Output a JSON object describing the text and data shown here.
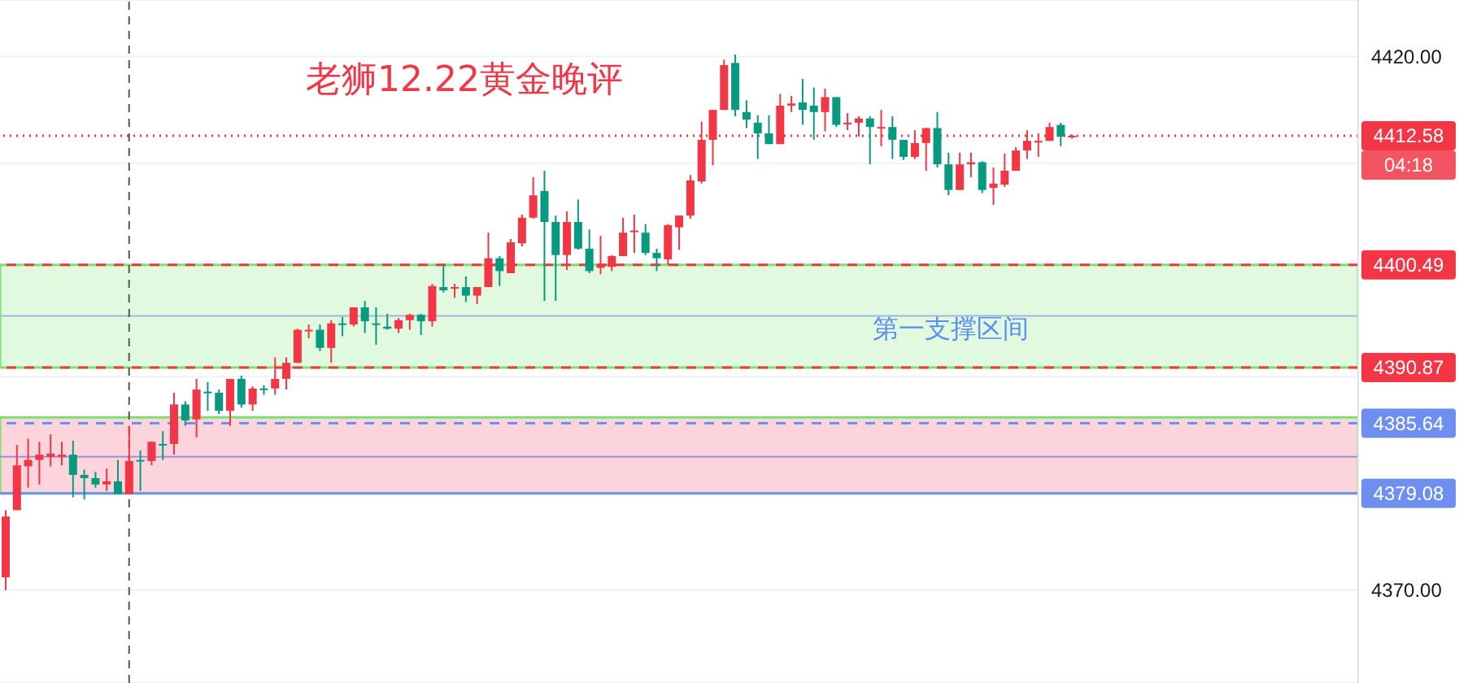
{
  "chart_data": {
    "type": "candlestick",
    "title": "老狮12.22黄金晚评",
    "categories": [
      null,
      null,
      null,
      null,
      null,
      null,
      null,
      null,
      null,
      null,
      null,
      null,
      null,
      null,
      null,
      null,
      null,
      null,
      null,
      null,
      null,
      null,
      null,
      null,
      null,
      null,
      null,
      null,
      null,
      null,
      null,
      null,
      null,
      null,
      null,
      null,
      null,
      null,
      null,
      null,
      null,
      null,
      null,
      null,
      null,
      null,
      null,
      null,
      null,
      null,
      null,
      null,
      null,
      null,
      null,
      null,
      null,
      null,
      null,
      null,
      null,
      null,
      null,
      null,
      null,
      null,
      null,
      null,
      null,
      null,
      null,
      null,
      null,
      null,
      null,
      null,
      null,
      null,
      null,
      null,
      null,
      null,
      null,
      null,
      null,
      null,
      null,
      null,
      null,
      null,
      null,
      null,
      null,
      null,
      null,
      null,
      null,
      null,
      null,
      null,
      null,
      null,
      null,
      null,
      null,
      null,
      null,
      null,
      null,
      null,
      null,
      null,
      null,
      null,
      null,
      null,
      null,
      null,
      null,
      null,
      null
    ],
    "ohlc": [
      [
        4371.2,
        4377.5,
        4370.0,
        4376.9
      ],
      [
        4377.5,
        4383.6,
        4377.5,
        4381.7
      ],
      [
        4381.6,
        4384.2,
        4379.6,
        4382.2
      ],
      [
        4382.2,
        4383.9,
        4379.9,
        4382.7
      ],
      [
        4382.5,
        4384.6,
        4381.6,
        4382.8
      ],
      [
        4382.5,
        4383.9,
        4381.7,
        4382.7
      ],
      [
        4382.7,
        4384.0,
        4378.7,
        4380.8
      ],
      [
        4380.8,
        4381.3,
        4378.5,
        4380.5
      ],
      [
        4380.5,
        4381.1,
        4379.6,
        4379.9
      ],
      [
        4379.9,
        4381.4,
        4379.3,
        4380.2
      ],
      [
        4380.2,
        4382.2,
        4379.0,
        4379.0
      ],
      [
        4379.0,
        4385.4,
        4379.0,
        4382.1
      ],
      [
        4382.2,
        4383.1,
        4379.3,
        4382.1
      ],
      [
        4382.1,
        4383.9,
        4381.7,
        4383.9
      ],
      [
        4383.7,
        4384.9,
        4382.2,
        4383.6
      ],
      [
        4383.7,
        4388.5,
        4382.7,
        4387.4
      ],
      [
        4387.4,
        4387.7,
        4385.4,
        4385.9
      ],
      [
        4386.0,
        4389.8,
        4384.3,
        4388.8
      ],
      [
        4388.6,
        4389.5,
        4386.8,
        4388.5
      ],
      [
        4388.5,
        4388.8,
        4386.5,
        4386.8
      ],
      [
        4386.8,
        4389.8,
        4385.4,
        4389.8
      ],
      [
        4389.8,
        4390.1,
        4387.1,
        4387.4
      ],
      [
        4387.4,
        4389.1,
        4386.8,
        4388.9
      ],
      [
        4388.9,
        4389.2,
        4388.3,
        4388.8
      ],
      [
        4388.9,
        4391.8,
        4388.3,
        4389.8
      ],
      [
        4389.8,
        4391.8,
        4388.8,
        4391.3
      ],
      [
        4391.3,
        4394.5,
        4391.3,
        4394.4
      ],
      [
        4394.3,
        4394.9,
        4393.6,
        4394.4
      ],
      [
        4394.4,
        4394.9,
        4392.4,
        4392.7
      ],
      [
        4392.7,
        4395.3,
        4391.3,
        4395.0
      ],
      [
        4395.0,
        4395.6,
        4393.8,
        4394.9
      ],
      [
        4394.9,
        4396.5,
        4394.7,
        4396.5
      ],
      [
        4396.5,
        4397.1,
        4394.1,
        4395.2
      ],
      [
        4395.0,
        4396.5,
        4393.0,
        4394.9
      ],
      [
        4394.7,
        4395.9,
        4394.4,
        4394.5
      ],
      [
        4394.5,
        4395.5,
        4394.1,
        4395.3
      ],
      [
        4395.3,
        4395.9,
        4394.4,
        4395.8
      ],
      [
        4395.8,
        4395.9,
        4393.9,
        4395.2
      ],
      [
        4395.2,
        4398.7,
        4394.7,
        4398.5
      ],
      [
        4398.4,
        4400.5,
        4397.9,
        4398.1
      ],
      [
        4398.3,
        4398.7,
        4397.4,
        4398.4
      ],
      [
        4398.4,
        4399.4,
        4397.0,
        4397.6
      ],
      [
        4397.6,
        4398.4,
        4396.8,
        4398.4
      ],
      [
        4398.4,
        4403.5,
        4398.4,
        4401.1
      ],
      [
        4401.1,
        4401.3,
        4398.5,
        4399.9
      ],
      [
        4399.7,
        4402.9,
        4399.7,
        4402.6
      ],
      [
        4402.5,
        4405.2,
        4402.2,
        4404.9
      ],
      [
        4404.9,
        4408.7,
        4404.8,
        4407.0
      ],
      [
        4407.4,
        4409.3,
        4397.1,
        4404.5
      ],
      [
        4404.5,
        4405.1,
        4397.1,
        4401.4
      ],
      [
        4401.4,
        4405.5,
        4400.0,
        4404.5
      ],
      [
        4404.5,
        4406.6,
        4401.9,
        4402.0
      ],
      [
        4402.0,
        4403.8,
        4399.7,
        4399.9
      ],
      [
        4400.2,
        4403.2,
        4399.6,
        4400.5
      ],
      [
        4400.3,
        4401.4,
        4399.9,
        4401.3
      ],
      [
        4401.3,
        4404.9,
        4401.3,
        4403.5
      ],
      [
        4403.6,
        4405.2,
        4401.6,
        4403.7
      ],
      [
        4403.5,
        4404.3,
        4401.4,
        4401.6
      ],
      [
        4401.6,
        4402.0,
        4399.9,
        4401.1
      ],
      [
        4401.0,
        4404.3,
        4400.5,
        4404.2
      ],
      [
        4404.0,
        4405.1,
        4401.9,
        4405.1
      ],
      [
        4405.1,
        4408.9,
        4404.8,
        4408.4
      ],
      [
        4408.3,
        4413.9,
        4408.1,
        4412.2
      ],
      [
        4412.2,
        4415.0,
        4409.8,
        4415.0
      ],
      [
        4415.0,
        4419.7,
        4415.0,
        4419.2
      ],
      [
        4419.4,
        4420.2,
        4414.4,
        4415.0
      ],
      [
        4414.8,
        4415.9,
        4413.3,
        4414.1
      ],
      [
        4413.8,
        4414.5,
        4410.4,
        4412.8
      ],
      [
        4412.8,
        4414.5,
        4411.8,
        4411.8
      ],
      [
        4411.8,
        4416.5,
        4411.8,
        4415.4
      ],
      [
        4415.4,
        4416.3,
        4414.8,
        4415.6
      ],
      [
        4415.7,
        4417.9,
        4413.6,
        4415.0
      ],
      [
        4415.4,
        4417.1,
        4412.2,
        4414.8
      ],
      [
        4414.8,
        4417.0,
        4413.0,
        4416.2
      ],
      [
        4416.2,
        4416.2,
        4413.4,
        4413.6
      ],
      [
        4413.7,
        4414.7,
        4413.1,
        4413.8
      ],
      [
        4413.8,
        4414.4,
        4412.5,
        4414.2
      ],
      [
        4414.2,
        4414.4,
        4409.9,
        4413.4
      ],
      [
        4413.3,
        4415.0,
        4411.6,
        4413.4
      ],
      [
        4413.4,
        4414.4,
        4410.4,
        4412.2
      ],
      [
        4412.2,
        4412.2,
        4410.3,
        4410.6
      ],
      [
        4410.6,
        4413.1,
        4410.4,
        4411.9
      ],
      [
        4411.9,
        4413.3,
        4409.3,
        4413.3
      ],
      [
        4413.3,
        4414.8,
        4409.6,
        4409.9
      ],
      [
        4409.9,
        4411.0,
        4407.0,
        4407.5
      ],
      [
        4407.5,
        4411.0,
        4407.5,
        4409.9
      ],
      [
        4409.9,
        4411.0,
        4408.7,
        4410.1
      ],
      [
        4410.1,
        4410.2,
        4407.2,
        4407.5
      ],
      [
        4407.7,
        4409.6,
        4406.1,
        4408.1
      ],
      [
        4408.0,
        4410.9,
        4407.8,
        4409.3
      ],
      [
        4409.3,
        4411.5,
        4409.3,
        4411.2
      ],
      [
        4411.2,
        4413.1,
        4410.4,
        4412.1
      ],
      [
        4412.0,
        4412.8,
        4410.6,
        4412.1
      ],
      [
        4412.1,
        4413.8,
        4412.1,
        4413.4
      ],
      [
        4413.6,
        4413.8,
        4411.6,
        4412.5
      ],
      [
        4412.5,
        4412.7,
        4412.3,
        4412.58
      ],
      null,
      null,
      null,
      null,
      null,
      null,
      null,
      null,
      null,
      null,
      null,
      null,
      null,
      null,
      null,
      null,
      null,
      null,
      null,
      null,
      null,
      null,
      null,
      null,
      null
    ],
    "colors": [
      "#f23645",
      "#f23645",
      "#f23645",
      "#f23645",
      "#f23645",
      "#f23645",
      "#089981",
      "#089981",
      "#089981",
      "#f23645",
      "#089981",
      "#f23645",
      "#089981",
      "#f23645",
      "#089981",
      "#f23645",
      "#089981",
      "#f23645",
      "#089981",
      "#089981",
      "#f23645",
      "#089981",
      "#f23645",
      "#089981",
      "#f23645",
      "#f23645",
      "#f23645",
      "#f23645",
      "#089981",
      "#f23645",
      "#089981",
      "#f23645",
      "#089981",
      "#089981",
      "#089981",
      "#f23645",
      "#f23645",
      "#089981",
      "#f23645",
      "#089981",
      "#f23645",
      "#089981",
      "#f23645",
      "#f23645",
      "#089981",
      "#f23645",
      "#f23645",
      "#f23645",
      "#089981",
      "#089981",
      "#f23645",
      "#089981",
      "#089981",
      "#f23645",
      "#f23645",
      "#f23645",
      "#f23645",
      "#089981",
      "#089981",
      "#f23645",
      "#f23645",
      "#f23645",
      "#f23645",
      "#f23645",
      "#f23645",
      "#089981",
      "#089981",
      "#089981",
      "#089981",
      "#f23645",
      "#f23645",
      "#089981",
      "#089981",
      "#f23645",
      "#089981",
      "#f23645",
      "#f23645",
      "#089981",
      "#f23645",
      "#089981",
      "#089981",
      "#f23645",
      "#f23645",
      "#089981",
      "#089981",
      "#f23645",
      "#f23645",
      "#089981",
      "#f23645",
      "#f23645",
      "#f23645",
      "#f23645",
      "#f23645",
      "#f23645",
      "#089981",
      "#f23645",
      null,
      null,
      null,
      null,
      null,
      null,
      null,
      null,
      null,
      null,
      null,
      null,
      null,
      null,
      null,
      null,
      null,
      null,
      null,
      null,
      null,
      null,
      null,
      null,
      null
    ],
    "ylim": [
      4361.3,
      4425.3
    ],
    "yticks": [
      {
        "value": 4370,
        "label": "4370.00"
      },
      {
        "value": 4390,
        "label": null
      },
      {
        "value": 4410,
        "label": null
      },
      {
        "value": 4420,
        "label": "4420.00"
      }
    ],
    "tick_labels": "y",
    "grid": "y",
    "legend": false,
    "bands": [
      {
        "axis": "y",
        "from": 4390.87,
        "to": 4400.49,
        "label": "第一支撑区间",
        "color": "#e1f9df"
      },
      {
        "axis": "y",
        "from": 4379.08,
        "to": 4386.2,
        "label": null,
        "color": "#fbd5db"
      }
    ],
    "ref_lines": [
      {
        "axis": "y",
        "value": 4412.58,
        "label": "4412.58",
        "color": "#f23645",
        "line_style": "dotted"
      },
      {
        "axis": "y",
        "value": 4400.49,
        "label": "4400.49",
        "color": "#f23645",
        "line_style": "dashed"
      },
      {
        "axis": "y",
        "value": 4390.87,
        "label": "4390.87",
        "color": "#f23645",
        "line_style": "dashed"
      },
      {
        "axis": "y",
        "value": 4385.64,
        "label": "4385.64",
        "color": "#6f8ff0",
        "line_style": "dashed"
      },
      {
        "axis": "y",
        "value": 4379.08,
        "label": "4379.08",
        "color": "#6f8ff0",
        "line_style": "solid"
      },
      {
        "axis": "y",
        "value": 4395.7,
        "label": null,
        "color": "#9fb7e6",
        "line_style": "solid"
      },
      {
        "axis": "y",
        "value": 4382.5,
        "label": null,
        "color": "#9a8fe0",
        "line_style": "solid"
      }
    ],
    "annotations": [
      "04:18"
    ]
  }
}
